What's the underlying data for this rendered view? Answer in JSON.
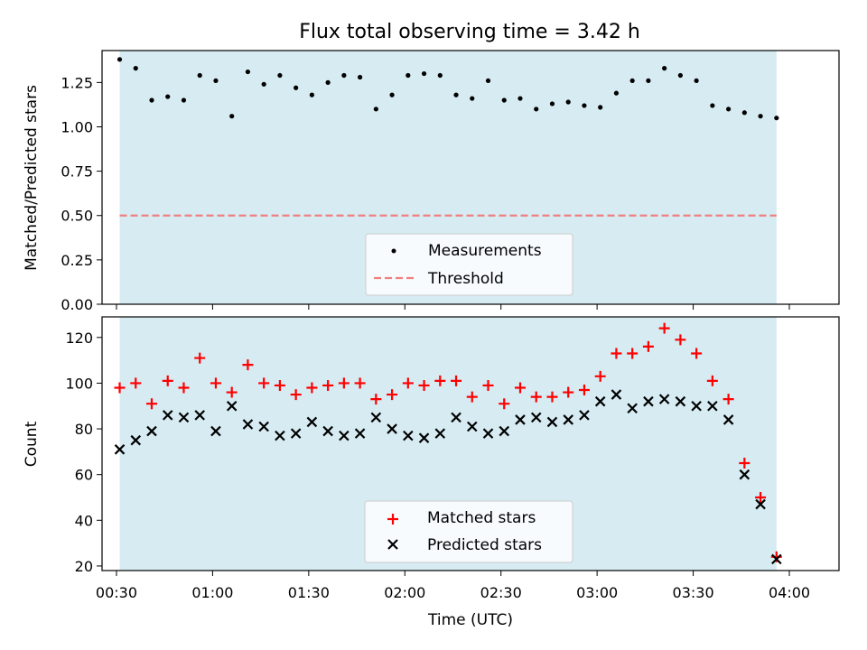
{
  "title": "Flux total observing time = 3.42 h",
  "colors": {
    "band": "#add8e6",
    "threshold": "#f08080",
    "matched": "#ff0000",
    "predicted": "#000000",
    "measurements": "#000000"
  },
  "chart_data": [
    {
      "type": "scatter",
      "ylabel": "Matched/Predicted stars",
      "ylim": [
        0,
        1.43
      ],
      "yticks": [
        "0.00",
        "0.25",
        "0.50",
        "0.75",
        "1.00",
        "1.25"
      ],
      "ytick_values": [
        0,
        0.25,
        0.5,
        0.75,
        1.0,
        1.25
      ],
      "xlim_minutes": [
        25.5,
        255.5
      ],
      "shaded_span_minutes": [
        31,
        236
      ],
      "threshold": 0.5,
      "legend": {
        "position": "bottom-center",
        "entries": [
          "Measurements",
          "Threshold"
        ]
      },
      "series": [
        {
          "name": "Measurements",
          "x": [
            "00:31",
            "00:36",
            "00:41",
            "00:46",
            "00:51",
            "00:56",
            "01:01",
            "01:06",
            "01:11",
            "01:16",
            "01:21",
            "01:26",
            "01:31",
            "01:36",
            "01:41",
            "01:46",
            "01:51",
            "01:56",
            "02:01",
            "02:06",
            "02:11",
            "02:16",
            "02:21",
            "02:26",
            "02:31",
            "02:36",
            "02:41",
            "02:46",
            "02:51",
            "02:56",
            "03:01",
            "03:06",
            "03:11",
            "03:16",
            "03:21",
            "03:26",
            "03:31",
            "03:36",
            "03:41",
            "03:46",
            "03:51",
            "03:56"
          ],
          "values": [
            1.38,
            1.33,
            1.15,
            1.17,
            1.15,
            1.29,
            1.26,
            1.06,
            1.31,
            1.24,
            1.29,
            1.22,
            1.18,
            1.25,
            1.29,
            1.28,
            1.1,
            1.18,
            1.29,
            1.3,
            1.29,
            1.18,
            1.16,
            1.26,
            1.15,
            1.16,
            1.1,
            1.13,
            1.14,
            1.12,
            1.11,
            1.19,
            1.26,
            1.26,
            1.33,
            1.29,
            1.26,
            1.12,
            1.1,
            1.08,
            1.06,
            1.05
          ]
        }
      ]
    },
    {
      "type": "scatter",
      "xlabel": "Time (UTC)",
      "ylabel": "Count",
      "ylim": [
        18,
        129
      ],
      "yticks": [
        "20",
        "40",
        "60",
        "80",
        "100",
        "120"
      ],
      "ytick_values": [
        20,
        40,
        60,
        80,
        100,
        120
      ],
      "xticks": [
        "00:30",
        "01:00",
        "01:30",
        "02:00",
        "02:30",
        "03:00",
        "03:30",
        "04:00"
      ],
      "xtick_minutes": [
        30,
        60,
        90,
        120,
        150,
        180,
        210,
        240
      ],
      "xlim_minutes": [
        25.5,
        255.5
      ],
      "shaded_span_minutes": [
        31,
        236
      ],
      "legend": {
        "position": "bottom-center",
        "entries": [
          "Matched stars",
          "Predicted stars"
        ]
      },
      "x": [
        "00:31",
        "00:36",
        "00:41",
        "00:46",
        "00:51",
        "00:56",
        "01:01",
        "01:06",
        "01:11",
        "01:16",
        "01:21",
        "01:26",
        "01:31",
        "01:36",
        "01:41",
        "01:46",
        "01:51",
        "01:56",
        "02:01",
        "02:06",
        "02:11",
        "02:16",
        "02:21",
        "02:26",
        "02:31",
        "02:36",
        "02:41",
        "02:46",
        "02:51",
        "02:56",
        "03:01",
        "03:06",
        "03:11",
        "03:16",
        "03:21",
        "03:26",
        "03:31",
        "03:36",
        "03:41",
        "03:46",
        "03:51",
        "03:56"
      ],
      "series": [
        {
          "name": "Matched stars",
          "values": [
            98,
            100,
            91,
            101,
            98,
            111,
            100,
            96,
            108,
            100,
            99,
            95,
            98,
            99,
            100,
            100,
            93,
            95,
            100,
            99,
            101,
            101,
            94,
            99,
            91,
            98,
            94,
            94,
            96,
            97,
            103,
            113,
            113,
            116,
            124,
            119,
            113,
            101,
            93,
            65,
            50,
            24
          ]
        },
        {
          "name": "Predicted stars",
          "values": [
            71,
            75,
            79,
            86,
            85,
            86,
            79,
            90,
            82,
            81,
            77,
            78,
            83,
            79,
            77,
            78,
            85,
            80,
            77,
            76,
            78,
            85,
            81,
            78,
            79,
            84,
            85,
            83,
            84,
            86,
            92,
            95,
            89,
            92,
            93,
            92,
            90,
            90,
            84,
            60,
            47,
            23
          ]
        }
      ]
    }
  ]
}
